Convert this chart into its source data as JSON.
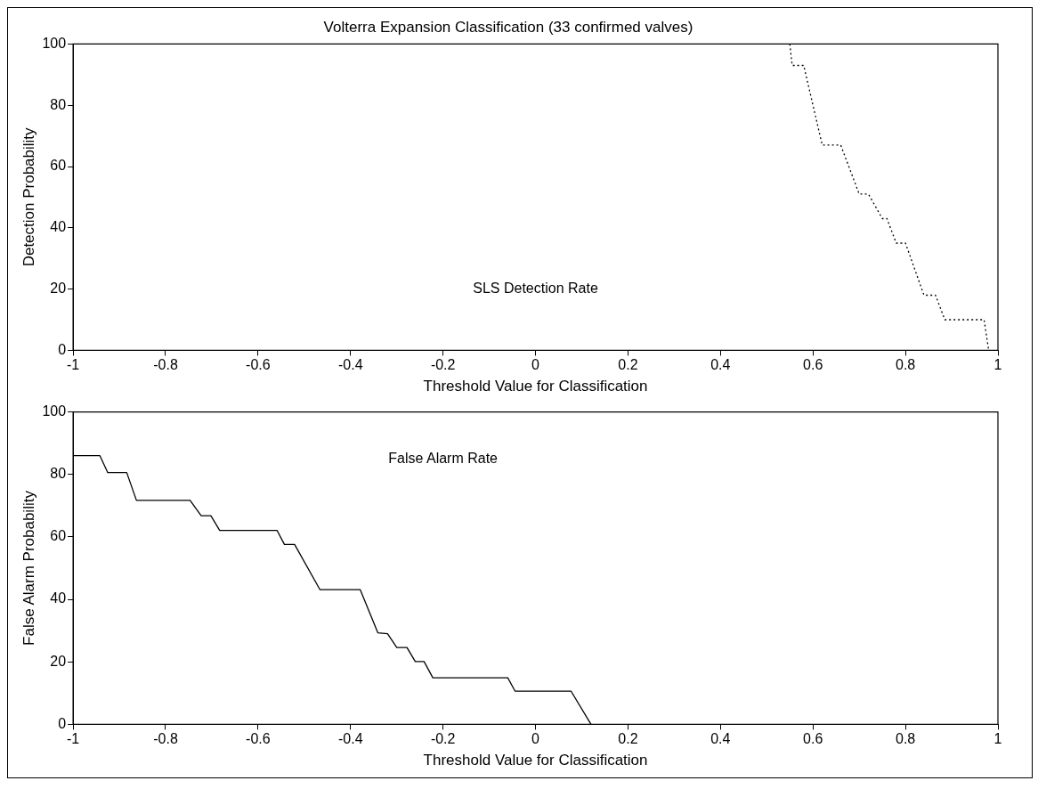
{
  "chart_data": [
    {
      "type": "line",
      "title": "Volterra Expansion Classification (33 confirmed valves)",
      "xlabel": "Threshold Value for Classification",
      "ylabel": "Detection Probability",
      "series": [
        {
          "color": "#000000",
          "x": [
            0.55,
            0.555,
            0.58,
            0.62,
            0.66,
            0.7,
            0.72,
            0.75,
            0.76,
            0.78,
            0.8,
            0.84,
            0.865,
            0.885,
            0.97,
            0.98
          ],
          "values": [
            100,
            93,
            93,
            67,
            67,
            51,
            51,
            43,
            43,
            35,
            35,
            18,
            18,
            10,
            10,
            0
          ],
          "line_style": "dotted"
        }
      ],
      "xlim": [
        -1,
        1
      ],
      "xticks": [
        -1,
        -0.8,
        -0.6,
        -0.4,
        -0.2,
        0,
        0.2,
        0.4,
        0.6,
        0.8,
        1
      ],
      "ylim": [
        0,
        100
      ],
      "yticks": [
        0,
        20,
        40,
        60,
        80,
        100
      ],
      "annotations": [
        "SLS Detection Rate"
      ]
    },
    {
      "type": "line",
      "xlabel": "Threshold Value for Classification",
      "ylabel": "False Alarm Probability",
      "series": [
        {
          "color": "#000000",
          "x": [
            -1,
            -0.942,
            -0.925,
            -0.884,
            -0.863,
            -0.747,
            -0.723,
            -0.702,
            -0.683,
            -0.559,
            -0.543,
            -0.521,
            -0.466,
            -0.379,
            -0.341,
            -0.32,
            -0.3,
            -0.278,
            -0.26,
            -0.241,
            -0.222,
            -0.06,
            -0.044,
            0.077,
            0.12
          ],
          "values": [
            86,
            86,
            80.6,
            80.6,
            71.7,
            71.7,
            66.8,
            66.8,
            62.1,
            62.1,
            57.6,
            57.6,
            43.1,
            43.1,
            29.3,
            29,
            24.6,
            24.6,
            20.1,
            20.1,
            14.9,
            14.9,
            10.6,
            10.6,
            0
          ],
          "line_style": "solid"
        }
      ],
      "xlim": [
        -1,
        1
      ],
      "xticks": [
        -1,
        -0.8,
        -0.6,
        -0.4,
        -0.2,
        0,
        0.2,
        0.4,
        0.6,
        0.8,
        1
      ],
      "ylim": [
        0,
        100
      ],
      "yticks": [
        0,
        20,
        40,
        60,
        80,
        100
      ],
      "annotations": [
        "False Alarm Rate"
      ]
    }
  ]
}
